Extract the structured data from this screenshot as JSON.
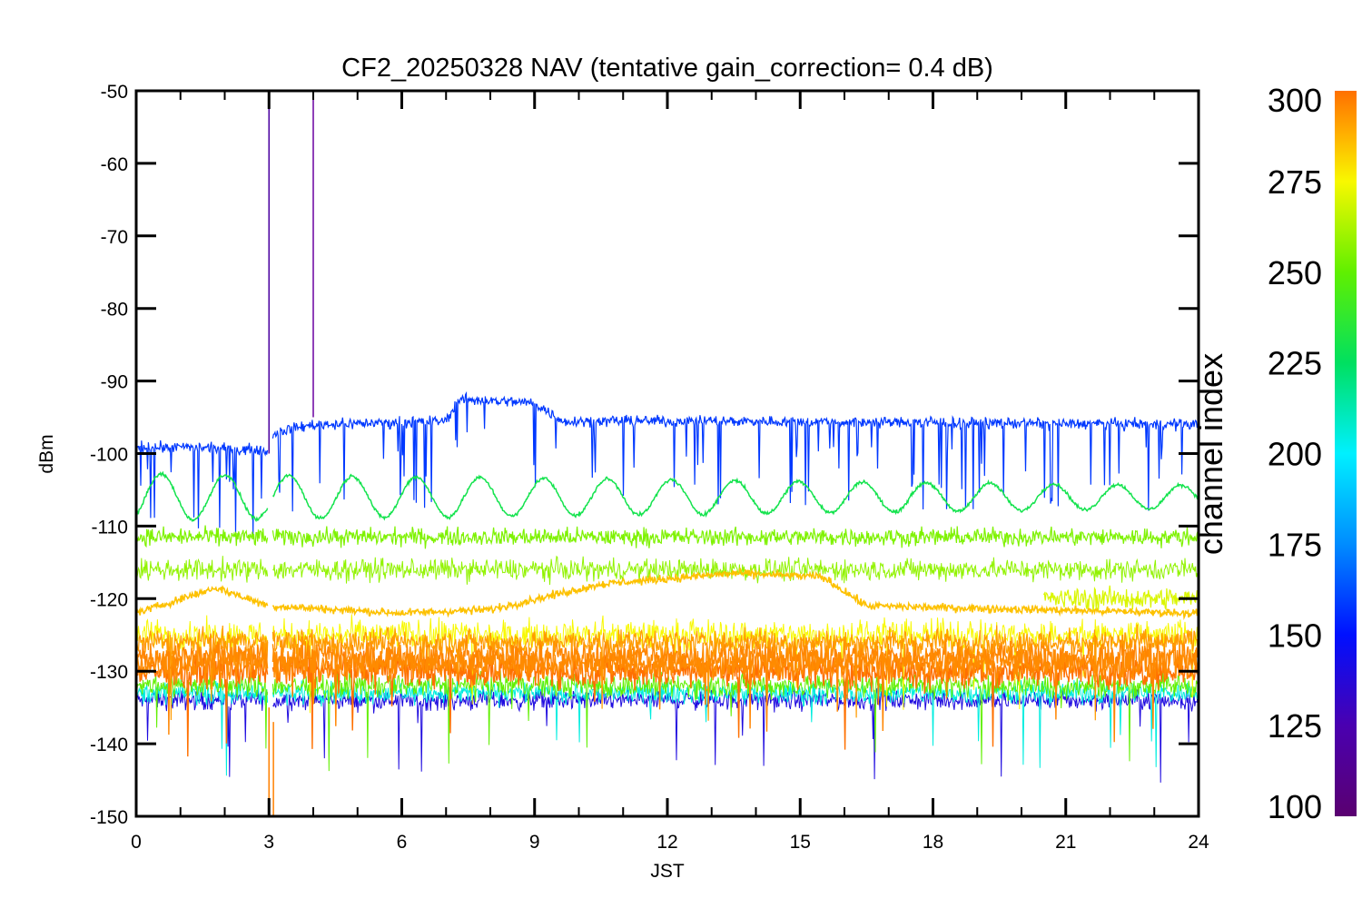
{
  "chart_data": {
    "type": "line",
    "title": "CF2_20250328 NAV (tentative gain_correction=  0.4 dB)",
    "xlabel": "JST",
    "ylabel": "dBm",
    "xlim": [
      0,
      24
    ],
    "ylim": [
      -150,
      -50
    ],
    "xticks": [
      0,
      3,
      6,
      9,
      12,
      15,
      18,
      21,
      24
    ],
    "yticks": [
      -50,
      -60,
      -70,
      -80,
      -90,
      -100,
      -110,
      -120,
      -130,
      -140,
      -150
    ],
    "grid": false,
    "colorbar": {
      "label": "channel index",
      "range": [
        100,
        300
      ],
      "ticks": [
        300,
        275,
        250,
        225,
        200,
        175,
        150,
        125,
        100
      ],
      "colormap": "rainbow"
    },
    "series": [
      {
        "channel": 158,
        "level_dBm": [
          [
            0,
            -99
          ],
          [
            3,
            -99.5
          ],
          [
            3.15,
            -97
          ],
          [
            4,
            -96
          ],
          [
            7,
            -95.5
          ],
          [
            7.3,
            -92.5
          ],
          [
            9,
            -93
          ],
          [
            9.6,
            -95.5
          ],
          [
            12.5,
            -95.5
          ],
          [
            13,
            -95.5
          ],
          [
            24,
            -96
          ]
        ]
      },
      {
        "channel": 230,
        "level_dBm": [
          [
            0,
            -106
          ],
          [
            24,
            -106
          ]
        ],
        "oscillating": true,
        "peak_dBm": [
          -102,
          -108
        ],
        "trough_dBm": [
          -108,
          -108
        ]
      },
      {
        "channel": 255,
        "level_dBm": [
          [
            0,
            -111.5
          ],
          [
            24,
            -111.5
          ]
        ]
      },
      {
        "channel": 258,
        "level_dBm": [
          [
            0,
            -116
          ],
          [
            24,
            -116
          ]
        ]
      },
      {
        "channel": 285,
        "level_dBm": [
          [
            0,
            -122
          ],
          [
            1.8,
            -118.5
          ],
          [
            3,
            -121
          ],
          [
            6,
            -122
          ],
          [
            8,
            -121.5
          ],
          [
            10.5,
            -118
          ],
          [
            13.5,
            -116.5
          ],
          [
            15.5,
            -117
          ],
          [
            16.5,
            -121
          ],
          [
            24,
            -122
          ]
        ]
      },
      {
        "channel": 270,
        "level_dBm": [
          [
            20.5,
            -120
          ],
          [
            24,
            -120
          ]
        ]
      },
      {
        "channel": 295,
        "level_dBm": [
          [
            0,
            -129
          ],
          [
            24,
            -129
          ]
        ]
      }
    ],
    "colors": {
      "ch158": "#0a7ff0",
      "ch230": "#27e24b",
      "ch255": "#8ef200",
      "ch285": "#ffb000",
      "ch295": "#ff8800"
    }
  }
}
